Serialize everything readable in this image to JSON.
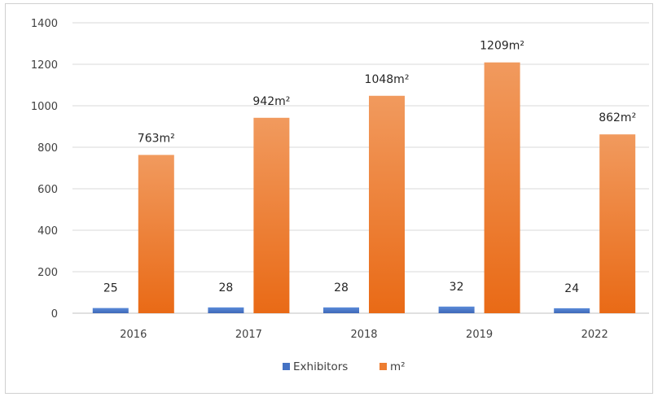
{
  "chart_data": {
    "type": "bar",
    "categories": [
      "2016",
      "2017",
      "2018",
      "2019",
      "2022"
    ],
    "series": [
      {
        "name": "Exhibitors",
        "values": [
          25,
          28,
          28,
          32,
          24
        ],
        "labels": [
          "25",
          "28",
          "28",
          "32",
          "24"
        ],
        "color": "#4472C4"
      },
      {
        "name": "m²",
        "values": [
          763,
          942,
          1048,
          1209,
          862
        ],
        "labels": [
          "763m²",
          "942m²",
          "1048m²",
          "1209m²",
          "862m²"
        ],
        "color": "#ED7D31"
      }
    ],
    "ylim": [
      0,
      1400
    ],
    "yticks": [
      "0",
      "200",
      "400",
      "600",
      "800",
      "1000",
      "1200",
      "1400"
    ],
    "grid": true,
    "legend": "bottom",
    "title": "",
    "xlabel": "",
    "ylabel": ""
  }
}
